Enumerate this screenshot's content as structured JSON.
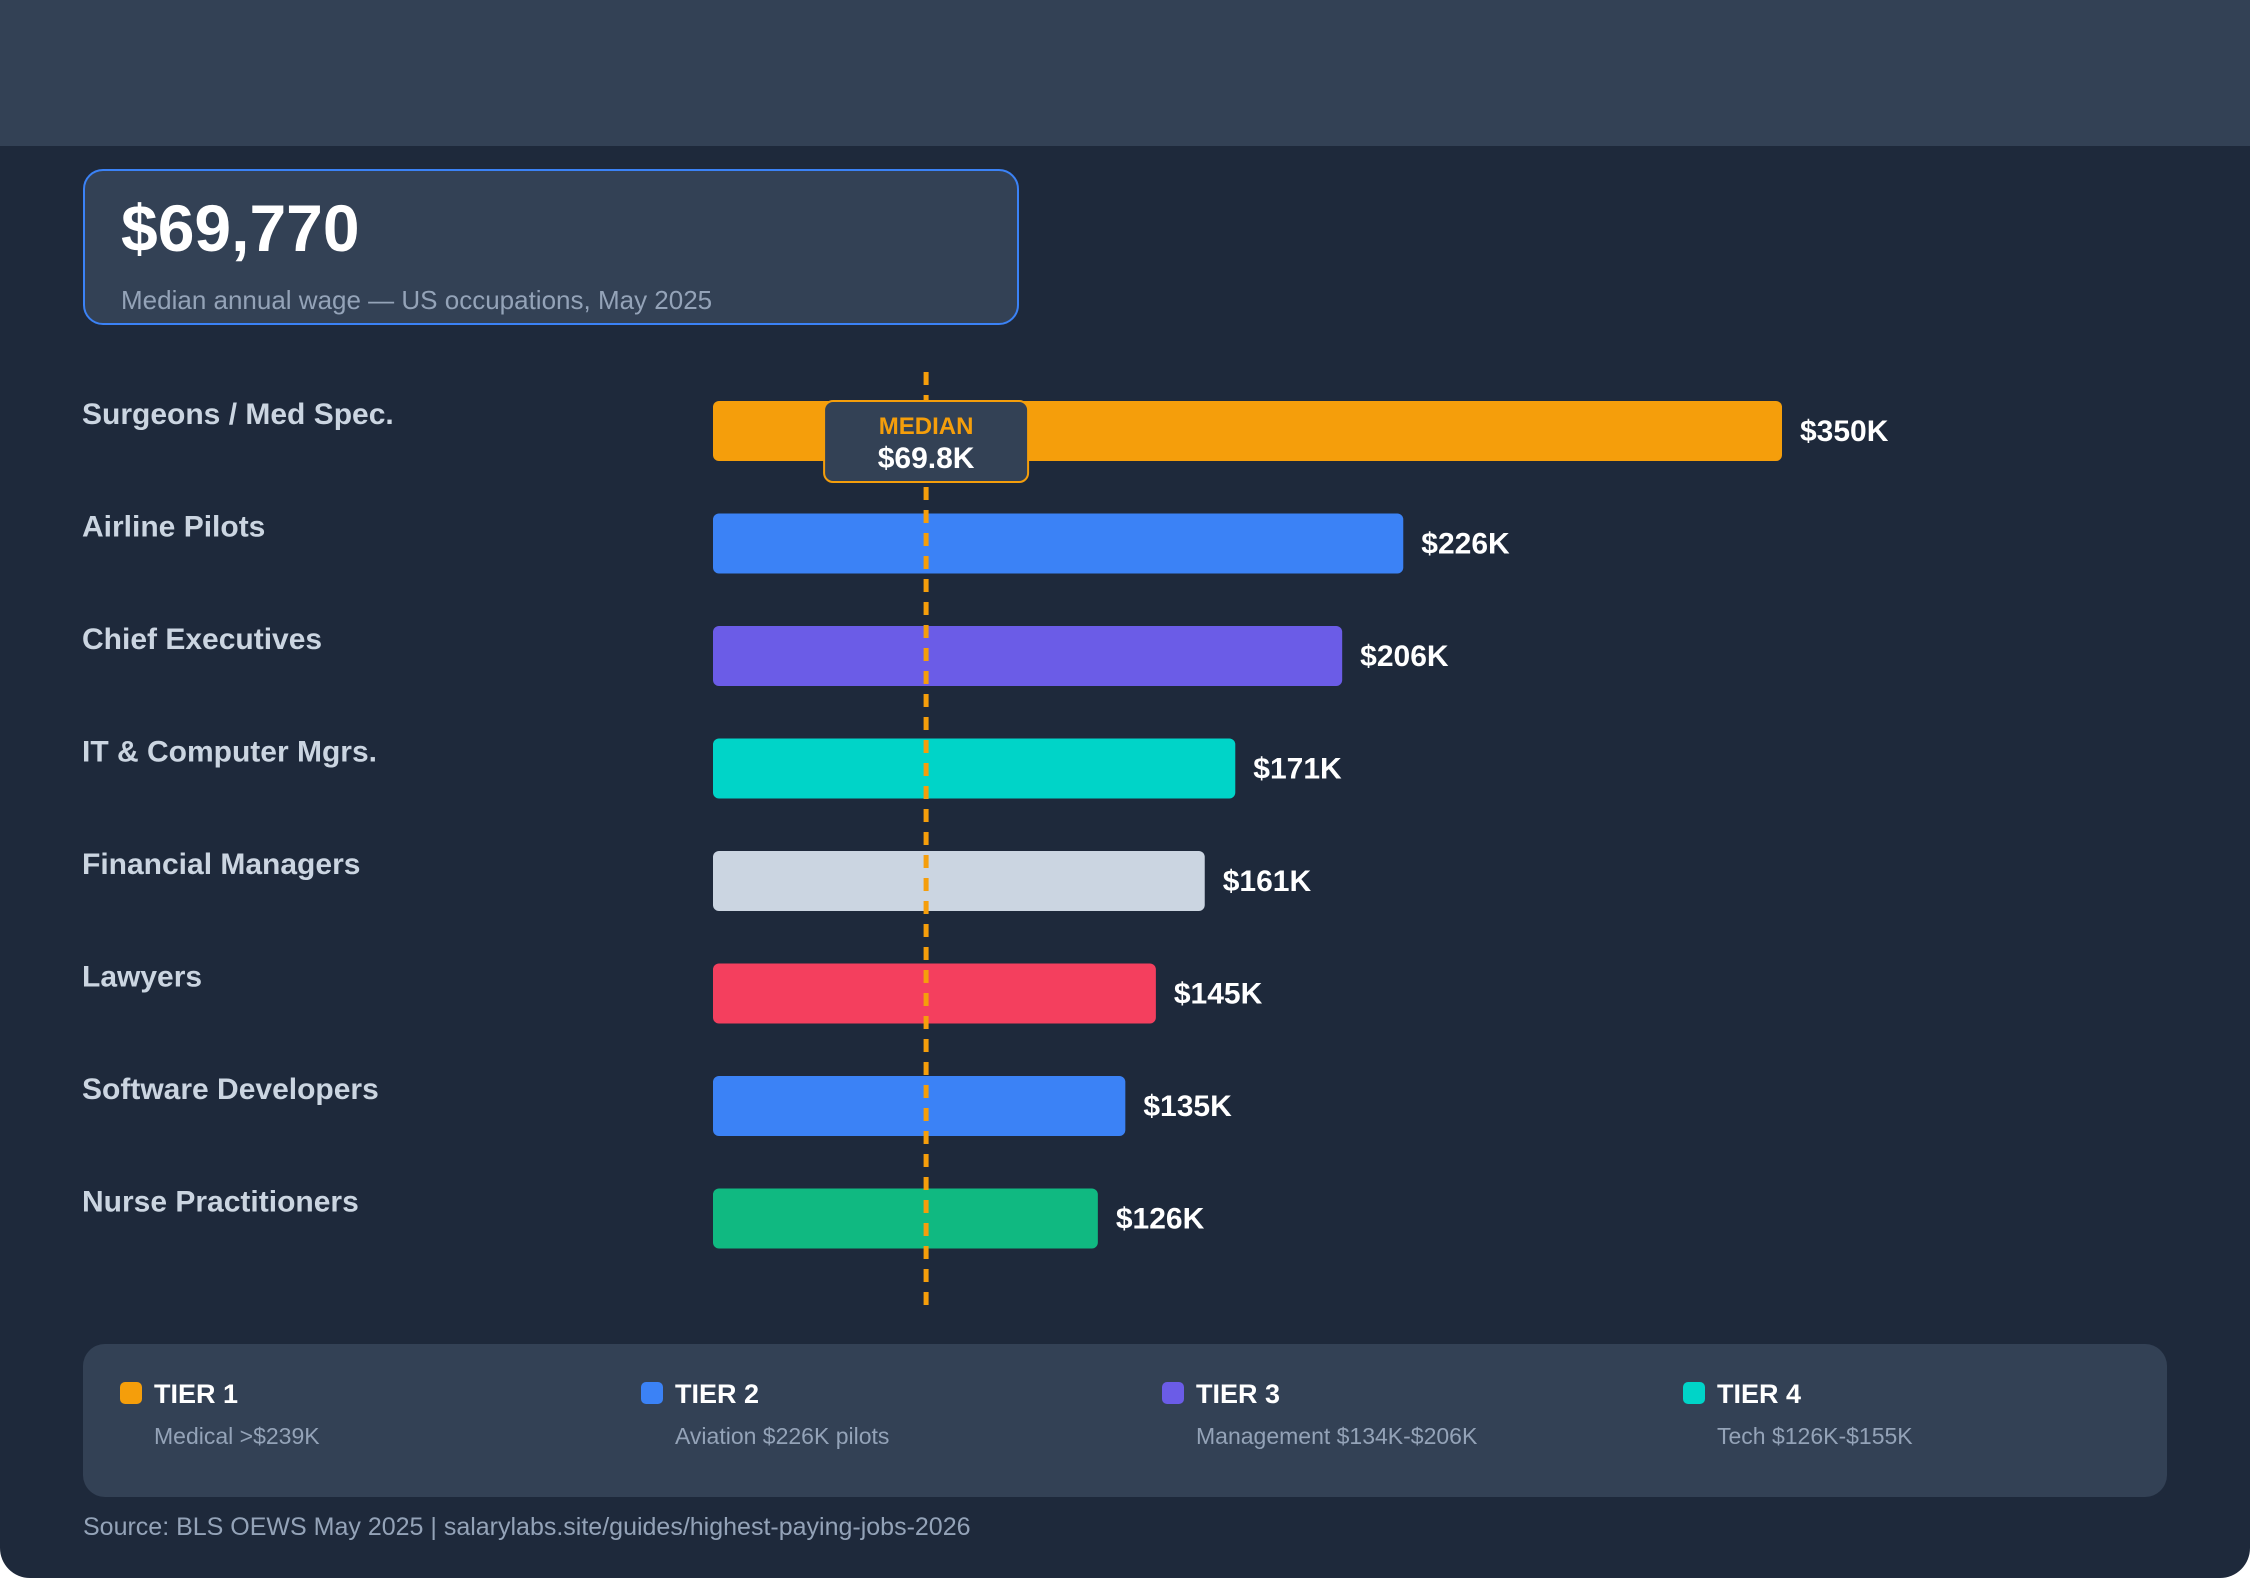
{
  "stat": {
    "value": "$69,770",
    "caption": "Median annual wage — US occupations, May 2025"
  },
  "median_marker": {
    "label": "MEDIAN",
    "value_label": "$69.8K",
    "color": "#f59e0b"
  },
  "chart_data": {
    "type": "bar",
    "orientation": "horizontal",
    "title": "",
    "xlabel": "",
    "ylabel": "",
    "xlim": [
      0,
      350000
    ],
    "grid": false,
    "categories": [
      "Surgeons / Med Spec.",
      "Airline Pilots",
      "Chief Executives",
      "IT & Computer Mgrs.",
      "Financial Managers",
      "Lawyers",
      "Software Developers",
      "Nurse Practitioners"
    ],
    "values": [
      350000,
      226000,
      206000,
      171000,
      161000,
      145000,
      135000,
      126000
    ],
    "value_labels": [
      "$350K",
      "$226K",
      "$206K",
      "$171K",
      "$161K",
      "$145K",
      "$135K",
      "$126K"
    ],
    "colors": [
      "#f59e0b",
      "#3b82f6",
      "#6b5ce7",
      "#00d4c8",
      "#cbd5e1",
      "#f43f5e",
      "#3b82f6",
      "#10b981"
    ],
    "median": 69770
  },
  "legend": {
    "placement": "bottom",
    "items": [
      {
        "title": "TIER 1",
        "desc": "Medical >$239K",
        "color": "#f59e0b"
      },
      {
        "title": "TIER 2",
        "desc": "Aviation $226K pilots",
        "color": "#3b82f6"
      },
      {
        "title": "TIER 3",
        "desc": "Management $134K-$206K",
        "color": "#6b5ce7"
      },
      {
        "title": "TIER 4",
        "desc": "Tech $126K-$155K",
        "color": "#00d4c8"
      }
    ]
  },
  "footer": {
    "text": "Source: BLS OEWS May 2025  |  salarylabs.site/guides/highest-paying-jobs-2026"
  }
}
